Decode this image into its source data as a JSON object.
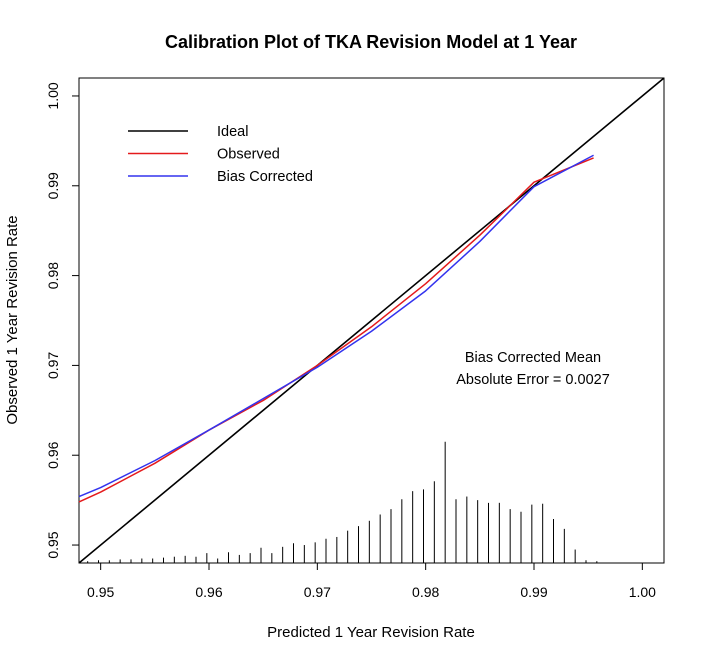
{
  "chart_data": {
    "type": "line",
    "title": "Calibration Plot of TKA Revision Model at 1 Year",
    "xlabel": "Predicted 1 Year Revision Rate",
    "ylabel": "Observed 1 Year Revision Rate",
    "xlim": [
      0.948,
      1.002
    ],
    "ylim": [
      0.948,
      1.002
    ],
    "x_ticks": [
      0.95,
      0.96,
      0.97,
      0.98,
      0.99,
      1.0
    ],
    "x_tick_labels": [
      "0.95",
      "0.96",
      "0.97",
      "0.98",
      "0.99",
      "1.00"
    ],
    "y_ticks": [
      0.95,
      0.96,
      0.97,
      0.98,
      0.99,
      1.0
    ],
    "y_tick_labels": [
      "0.95",
      "0.96",
      "0.97",
      "0.98",
      "0.99",
      "1.00"
    ],
    "grid": false,
    "legend_position": "top-left",
    "series": [
      {
        "name": "Ideal",
        "color": "#000000",
        "x": [
          0.948,
          1.002
        ],
        "y": [
          0.948,
          1.002
        ]
      },
      {
        "name": "Observed",
        "color": "#e41a1c",
        "x": [
          0.948,
          0.95,
          0.955,
          0.96,
          0.965,
          0.97,
          0.975,
          0.98,
          0.985,
          0.99,
          0.9955
        ],
        "y": [
          0.9548,
          0.9559,
          0.9591,
          0.9628,
          0.9661,
          0.97,
          0.9743,
          0.9791,
          0.9845,
          0.9904,
          0.9931
        ]
      },
      {
        "name": "Bias Corrected",
        "color": "#3333ee",
        "x": [
          0.948,
          0.95,
          0.955,
          0.96,
          0.965,
          0.97,
          0.975,
          0.98,
          0.985,
          0.99,
          0.9955
        ],
        "y": [
          0.9554,
          0.9564,
          0.9594,
          0.9628,
          0.9663,
          0.9698,
          0.9738,
          0.9783,
          0.9838,
          0.9899,
          0.9934
        ]
      }
    ],
    "distribution_spikes": {
      "color": "#000000",
      "baseline": 0.948,
      "x": [
        0.9488,
        0.9498,
        0.9508,
        0.9518,
        0.9528,
        0.9538,
        0.9548,
        0.9558,
        0.9568,
        0.9578,
        0.9588,
        0.9598,
        0.9608,
        0.9618,
        0.9628,
        0.9638,
        0.9648,
        0.9658,
        0.9668,
        0.9678,
        0.9688,
        0.9698,
        0.9708,
        0.9718,
        0.9728,
        0.9738,
        0.9748,
        0.9758,
        0.9768,
        0.9778,
        0.9788,
        0.9798,
        0.9808,
        0.9818,
        0.9828,
        0.9838,
        0.9848,
        0.9858,
        0.9868,
        0.9878,
        0.9888,
        0.9898,
        0.9908,
        0.9918,
        0.9928,
        0.9938,
        0.9948,
        0.9958
      ],
      "y": [
        0.9482,
        0.9483,
        0.9483,
        0.9484,
        0.9484,
        0.9485,
        0.9485,
        0.9486,
        0.9487,
        0.9488,
        0.9487,
        0.9491,
        0.9485,
        0.9492,
        0.9489,
        0.9491,
        0.9497,
        0.9491,
        0.9498,
        0.9502,
        0.95,
        0.9503,
        0.9507,
        0.9509,
        0.9516,
        0.9521,
        0.9527,
        0.9534,
        0.954,
        0.9551,
        0.956,
        0.9562,
        0.9571,
        0.9615,
        0.9551,
        0.9554,
        0.955,
        0.9547,
        0.9547,
        0.954,
        0.9537,
        0.9545,
        0.9546,
        0.9529,
        0.9518,
        0.9495,
        0.9483,
        0.9482
      ]
    },
    "annotation": {
      "line1": "Bias Corrected Mean",
      "line2": "Absolute Error = 0.0027",
      "x": 0.9847,
      "y": 0.97
    }
  }
}
